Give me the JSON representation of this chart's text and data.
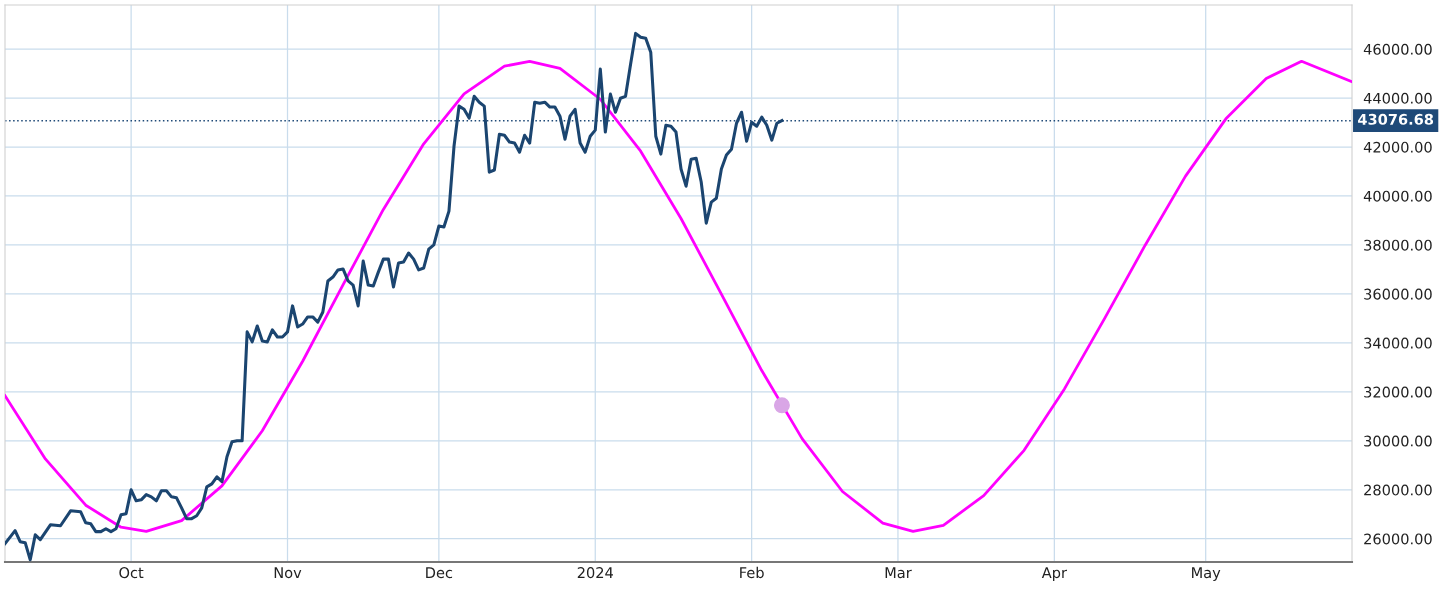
{
  "chart_data": {
    "type": "line",
    "xlim": [
      "2023-09-06",
      "2024-05-30"
    ],
    "xticks": [
      {
        "value": "2023-10-01",
        "label": "Oct"
      },
      {
        "value": "2023-11-01",
        "label": "Nov"
      },
      {
        "value": "2023-12-01",
        "label": "Dec"
      },
      {
        "value": "2024-01-01",
        "label": "2024"
      },
      {
        "value": "2024-02-01",
        "label": "Feb"
      },
      {
        "value": "2024-03-01",
        "label": "Mar"
      },
      {
        "value": "2024-04-01",
        "label": "Apr"
      },
      {
        "value": "2024-05-01",
        "label": "May"
      }
    ],
    "ylim": [
      25050,
      47800
    ],
    "yticks": [
      {
        "value": 26000,
        "label": "26000.00"
      },
      {
        "value": 28000,
        "label": "28000.00"
      },
      {
        "value": 30000,
        "label": "30000.00"
      },
      {
        "value": 32000,
        "label": "32000.00"
      },
      {
        "value": 34000,
        "label": "34000.00"
      },
      {
        "value": 36000,
        "label": "36000.00"
      },
      {
        "value": 38000,
        "label": "38000.00"
      },
      {
        "value": 40000,
        "label": "40000.00"
      },
      {
        "value": 42000,
        "label": "42000.00"
      },
      {
        "value": 44000,
        "label": "44000.00"
      },
      {
        "value": 46000,
        "label": "46000.00"
      }
    ],
    "grid": true,
    "legend": false,
    "ref_lines": [
      {
        "axis": "y",
        "value": 43076.68,
        "label": "43076.68",
        "color": "#1f4a78",
        "line_style": "dotted"
      }
    ],
    "series": [
      {
        "color": "#ff00ff",
        "x": [
          "2023-09-06",
          "2023-09-14",
          "2023-09-22",
          "2023-09-29",
          "2023-10-04",
          "2023-10-11",
          "2023-10-19",
          "2023-10-27",
          "2023-11-04",
          "2023-11-12",
          "2023-11-20",
          "2023-11-28",
          "2023-12-06",
          "2023-12-14",
          "2023-12-19",
          "2023-12-25",
          "2024-01-02",
          "2024-01-10",
          "2024-01-18",
          "2024-01-26",
          "2024-02-03",
          "2024-02-11",
          "2024-02-19",
          "2024-02-27",
          "2024-03-04",
          "2024-03-10",
          "2024-03-18",
          "2024-03-26",
          "2024-04-03",
          "2024-04-11",
          "2024-04-19",
          "2024-04-27",
          "2024-05-05",
          "2024-05-13",
          "2024-05-20",
          "2024-05-30"
        ],
        "values": [
          31840,
          29260,
          27370,
          26470,
          26300,
          26740,
          28160,
          30410,
          33250,
          36370,
          39450,
          42130,
          44170,
          45300,
          45500,
          45210,
          43950,
          41830,
          39080,
          35990,
          32870,
          30090,
          27930,
          26640,
          26300,
          26550,
          27760,
          29610,
          32120,
          35010,
          37990,
          40810,
          43150,
          44800,
          45500,
          44670
        ]
      },
      {
        "color": "#1b4570",
        "x": [
          "2023-09-06",
          "2023-09-08",
          "2023-09-09",
          "2023-09-10",
          "2023-09-11",
          "2023-09-12",
          "2023-09-13",
          "2023-09-15",
          "2023-09-17",
          "2023-09-19",
          "2023-09-21",
          "2023-09-22",
          "2023-09-23",
          "2023-09-24",
          "2023-09-25",
          "2023-09-26",
          "2023-09-27",
          "2023-09-28",
          "2023-09-29",
          "2023-09-30",
          "2023-10-01",
          "2023-10-02",
          "2023-10-03",
          "2023-10-04",
          "2023-10-05",
          "2023-10-06",
          "2023-10-07",
          "2023-10-08",
          "2023-10-09",
          "2023-10-10",
          "2023-10-11",
          "2023-10-12",
          "2023-10-13",
          "2023-10-14",
          "2023-10-15",
          "2023-10-16",
          "2023-10-17",
          "2023-10-18",
          "2023-10-19",
          "2023-10-20",
          "2023-10-21",
          "2023-10-22",
          "2023-10-23",
          "2023-10-24",
          "2023-10-25",
          "2023-10-26",
          "2023-10-27",
          "2023-10-28",
          "2023-10-29",
          "2023-10-30",
          "2023-10-31",
          "2023-11-01",
          "2023-11-02",
          "2023-11-03",
          "2023-11-04",
          "2023-11-05",
          "2023-11-06",
          "2023-11-07",
          "2023-11-08",
          "2023-11-09",
          "2023-11-10",
          "2023-11-11",
          "2023-11-12",
          "2023-11-13",
          "2023-11-14",
          "2023-11-15",
          "2023-11-16",
          "2023-11-17",
          "2023-11-18",
          "2023-11-19",
          "2023-11-20",
          "2023-11-21",
          "2023-11-22",
          "2023-11-23",
          "2023-11-24",
          "2023-11-25",
          "2023-11-26",
          "2023-11-27",
          "2023-11-28",
          "2023-11-29",
          "2023-11-30",
          "2023-12-01",
          "2023-12-02",
          "2023-12-03",
          "2023-12-04",
          "2023-12-05",
          "2023-12-06",
          "2023-12-07",
          "2023-12-08",
          "2023-12-09",
          "2023-12-10",
          "2023-12-11",
          "2023-12-12",
          "2023-12-13",
          "2023-12-14",
          "2023-12-15",
          "2023-12-16",
          "2023-12-17",
          "2023-12-18",
          "2023-12-19",
          "2023-12-20",
          "2023-12-21",
          "2023-12-22",
          "2023-12-23",
          "2023-12-24",
          "2023-12-25",
          "2023-12-26",
          "2023-12-27",
          "2023-12-28",
          "2023-12-29",
          "2023-12-30",
          "2023-12-31",
          "2024-01-01",
          "2024-01-02",
          "2024-01-03",
          "2024-01-04",
          "2024-01-05",
          "2024-01-06",
          "2024-01-07",
          "2024-01-08",
          "2024-01-09",
          "2024-01-10",
          "2024-01-11",
          "2024-01-12",
          "2024-01-13",
          "2024-01-14",
          "2024-01-15",
          "2024-01-16",
          "2024-01-17",
          "2024-01-18",
          "2024-01-19",
          "2024-01-20",
          "2024-01-21",
          "2024-01-22",
          "2024-01-23",
          "2024-01-24",
          "2024-01-25",
          "2024-01-26",
          "2024-01-27",
          "2024-01-28",
          "2024-01-29",
          "2024-01-30",
          "2024-01-31",
          "2024-02-01",
          "2024-02-02",
          "2024-02-03",
          "2024-02-04",
          "2024-02-05",
          "2024-02-06",
          "2024-02-07"
        ],
        "values": [
          25800,
          26330,
          25880,
          25840,
          25140,
          26160,
          25960,
          26570,
          26530,
          27140,
          27100,
          26650,
          26610,
          26290,
          26290,
          26410,
          26290,
          26410,
          26980,
          27020,
          28000,
          27550,
          27590,
          27800,
          27710,
          27550,
          27960,
          27960,
          27710,
          27670,
          27260,
          26820,
          26820,
          26940,
          27260,
          28120,
          28240,
          28530,
          28330,
          29350,
          29960,
          30000,
          30000,
          34450,
          34040,
          34690,
          34080,
          34040,
          34530,
          34240,
          34240,
          34450,
          35510,
          34650,
          34770,
          35060,
          35060,
          34850,
          35260,
          36530,
          36690,
          36980,
          37020,
          36530,
          36360,
          35510,
          37340,
          36360,
          36320,
          36890,
          37420,
          37420,
          36280,
          37260,
          37300,
          37670,
          37420,
          36980,
          37060,
          37830,
          38000,
          38770,
          38730,
          39380,
          42030,
          43670,
          43540,
          43180,
          44070,
          43830,
          43670,
          40970,
          41060,
          42520,
          42480,
          42200,
          42160,
          41790,
          42480,
          42160,
          43830,
          43790,
          43830,
          43630,
          43630,
          43260,
          42320,
          43260,
          43540,
          42160,
          41790,
          42440,
          42690,
          45180,
          42610,
          44160,
          43420,
          43990,
          44070,
          45380,
          46640,
          46480,
          46440,
          45870,
          42440,
          41710,
          42890,
          42850,
          42610,
          41100,
          40400,
          41500,
          41540,
          40570,
          38890,
          39750,
          39910,
          41100,
          41670,
          41910,
          42970,
          43420,
          42240,
          43010,
          42850,
          43220,
          42890,
          42280,
          42970,
          43080
        ]
      },
      {
        "type": "scatter",
        "color": "#d9a6e6",
        "marker": "circle",
        "x": [
          "2024-02-07"
        ],
        "values": [
          31450
        ]
      }
    ]
  }
}
